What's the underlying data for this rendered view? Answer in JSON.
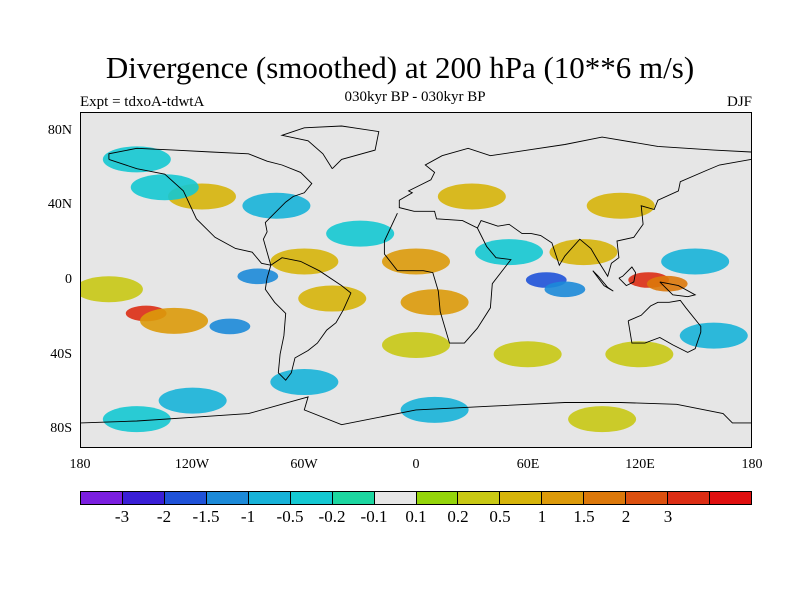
{
  "title": "Divergence (smoothed) at 200 hPa (10**6 m/s)",
  "subtitle": "030kyr BP - 030kyr BP",
  "experiment": "Expt = tdxoA-tdwtA",
  "season": "DJF",
  "map": {
    "projection": "cylindrical equidistant",
    "lon_range": [
      -180,
      180
    ],
    "lat_range": [
      -90,
      90
    ],
    "background_color": "#e6e6e6",
    "coastline_color": "#000000"
  },
  "y_axis": {
    "ticks": [
      {
        "lat": 80,
        "label": "80N"
      },
      {
        "lat": 40,
        "label": "40N"
      },
      {
        "lat": 0,
        "label": "0"
      },
      {
        "lat": -40,
        "label": "40S"
      },
      {
        "lat": -80,
        "label": "80S"
      }
    ]
  },
  "x_axis": {
    "ticks": [
      {
        "lon": -180,
        "label": "180"
      },
      {
        "lon": -120,
        "label": "120W"
      },
      {
        "lon": -60,
        "label": "60W"
      },
      {
        "lon": 0,
        "label": "0"
      },
      {
        "lon": 60,
        "label": "60E"
      },
      {
        "lon": 120,
        "label": "120E"
      },
      {
        "lon": 180,
        "label": "180"
      }
    ]
  },
  "colorbar": {
    "colors": [
      "#7b1fe0",
      "#3a1fd6",
      "#1f52d8",
      "#1c8ad8",
      "#17b2d8",
      "#14c8d2",
      "#1cd6a0",
      "#e6e6e6",
      "#94d40a",
      "#c8c814",
      "#d6b40a",
      "#dc9a0a",
      "#dc780a",
      "#dc500f",
      "#dc2d14",
      "#e00f0f"
    ],
    "levels": [
      "-3",
      "-2",
      "-1.5",
      "-1",
      "-0.5",
      "-0.2",
      "-0.1",
      "0.1",
      "0.2",
      "0.5",
      "1",
      "1.5",
      "2",
      "3"
    ]
  },
  "field_features": [
    {
      "lon": -145,
      "lat": -18,
      "level": 14
    },
    {
      "lon": -130,
      "lat": -22,
      "level": 11
    },
    {
      "lon": -165,
      "lat": -5,
      "level": 9
    },
    {
      "lon": -100,
      "lat": -25,
      "level": 3
    },
    {
      "lon": -85,
      "lat": 2,
      "level": 3
    },
    {
      "lon": -115,
      "lat": 45,
      "level": 10
    },
    {
      "lon": -135,
      "lat": 50,
      "level": 5
    },
    {
      "lon": -150,
      "lat": 65,
      "level": 5
    },
    {
      "lon": -75,
      "lat": 40,
      "level": 4
    },
    {
      "lon": -60,
      "lat": 10,
      "level": 10
    },
    {
      "lon": -45,
      "lat": -10,
      "level": 10
    },
    {
      "lon": -30,
      "lat": 25,
      "level": 5
    },
    {
      "lon": 0,
      "lat": 10,
      "level": 11
    },
    {
      "lon": 10,
      "lat": -12,
      "level": 11
    },
    {
      "lon": 30,
      "lat": 45,
      "level": 10
    },
    {
      "lon": 50,
      "lat": 15,
      "level": 5
    },
    {
      "lon": 70,
      "lat": 0,
      "level": 2
    },
    {
      "lon": 80,
      "lat": -5,
      "level": 3
    },
    {
      "lon": 90,
      "lat": 15,
      "level": 10
    },
    {
      "lon": 110,
      "lat": 40,
      "level": 10
    },
    {
      "lon": 125,
      "lat": 0,
      "level": 14
    },
    {
      "lon": 135,
      "lat": -2,
      "level": 12
    },
    {
      "lon": 150,
      "lat": 10,
      "level": 4
    },
    {
      "lon": 160,
      "lat": -30,
      "level": 4
    },
    {
      "lon": 120,
      "lat": -40,
      "level": 9
    },
    {
      "lon": -60,
      "lat": -55,
      "level": 4
    },
    {
      "lon": 0,
      "lat": -35,
      "level": 9
    },
    {
      "lon": -120,
      "lat": -65,
      "level": 4
    },
    {
      "lon": 60,
      "lat": -40,
      "level": 9
    },
    {
      "lon": 100,
      "lat": -75,
      "level": 9
    },
    {
      "lon": -150,
      "lat": -75,
      "level": 5
    },
    {
      "lon": 10,
      "lat": -70,
      "level": 4
    }
  ]
}
